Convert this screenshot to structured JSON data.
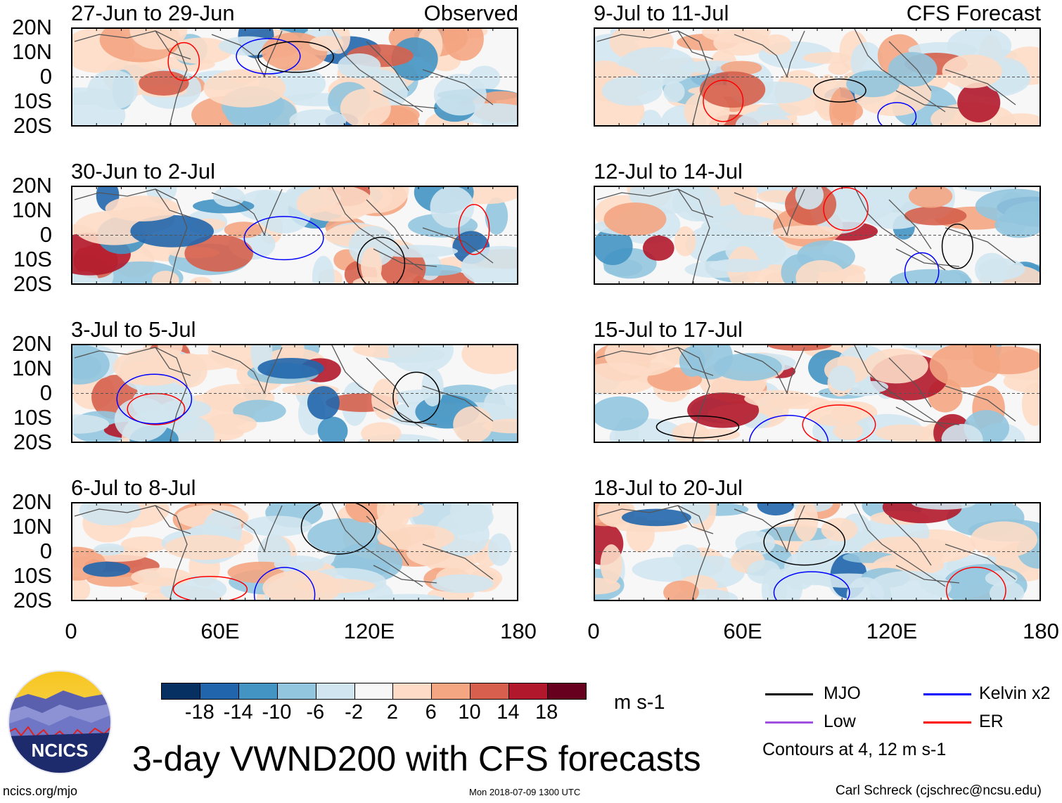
{
  "title": "3-day VWND200 with CFS forecasts",
  "left_column": {
    "label": "Observed",
    "panels": [
      "27-Jun to 29-Jun",
      "30-Jun to 2-Jul",
      "3-Jul to 5-Jul",
      "6-Jul to 8-Jul"
    ]
  },
  "right_column": {
    "label": "CFS Forecast",
    "panels": [
      "9-Jul to 11-Jul",
      "12-Jul to 14-Jul",
      "15-Jul to 17-Jul",
      "18-Jul to 20-Jul"
    ]
  },
  "lat_labels": [
    "20N",
    "10N",
    "0",
    "10S",
    "20S"
  ],
  "lon_labels": [
    "0",
    "60E",
    "120E",
    "180"
  ],
  "colorbar": {
    "colors": [
      "#053061",
      "#2166ac",
      "#4393c3",
      "#92c5de",
      "#d1e5f0",
      "#f7f7f7",
      "#fddbc7",
      "#f4a582",
      "#d6604d",
      "#b2182b",
      "#67001f"
    ],
    "labels": [
      "-18",
      "-14",
      "-10",
      "-6",
      "-2",
      "2",
      "6",
      "10",
      "14",
      "18"
    ],
    "units": "m s-1"
  },
  "legend": {
    "items": [
      {
        "label": "MJO",
        "color": "#000000"
      },
      {
        "label": "Kelvin x2",
        "color": "#0000ff"
      },
      {
        "label": "Low",
        "color": "#a050e0"
      },
      {
        "label": "ER",
        "color": "#ff0000"
      }
    ],
    "note": "Contours at 4, 12 m s-1"
  },
  "logo": {
    "text": "NCICS"
  },
  "footer": {
    "url": "ncics.org/mjo",
    "timestamp": "Mon 2018-07-09 1300 UTC",
    "credit": "Carl Schreck (cjschrec@ncsu.edu)"
  }
}
